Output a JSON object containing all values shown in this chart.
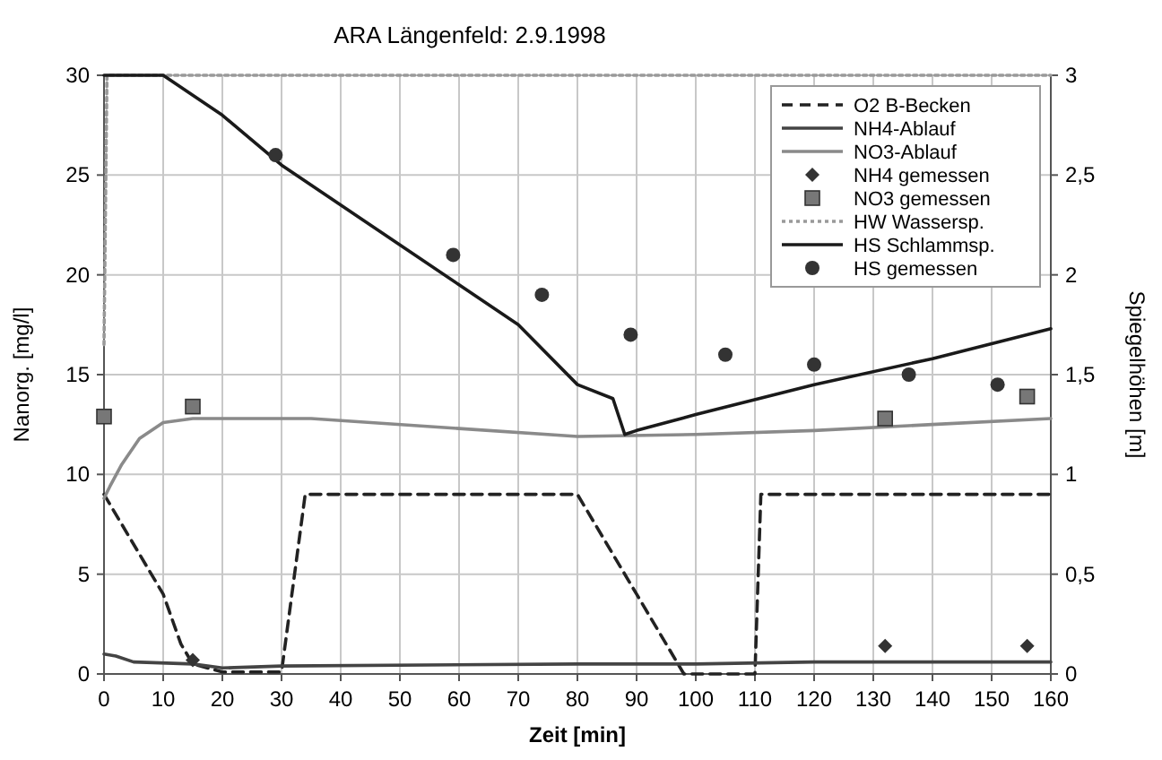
{
  "chart_data": {
    "type": "line",
    "title": "ARA Längenfeld: 2.9.1998",
    "xlabel": "Zeit [min]",
    "ylabel": "Nanorg. [mg/l]",
    "y2label": "Spiegelhöhen [m]",
    "xlim": [
      0,
      160
    ],
    "xticks": [
      0,
      10,
      20,
      30,
      40,
      50,
      60,
      70,
      80,
      90,
      100,
      110,
      120,
      130,
      140,
      150,
      160
    ],
    "ylim": [
      0,
      30
    ],
    "yticks": [
      0,
      5,
      10,
      15,
      20,
      25,
      30
    ],
    "y2lim": [
      0,
      3
    ],
    "y2ticks": [
      0,
      {
        "value": 0.5,
        "label": "0,5"
      },
      1,
      {
        "value": 1.5,
        "label": "1,5"
      },
      2,
      {
        "value": 2.5,
        "label": "2,5"
      },
      3
    ],
    "grid": true,
    "legend": "top right",
    "series": [
      {
        "name": "O2 B-Becken",
        "line_style": "dashed",
        "color": "#222222",
        "x": [
          0,
          5,
          10,
          13,
          15,
          20,
          30,
          34,
          80,
          90,
          98,
          100,
          110,
          111,
          160
        ],
        "values": [
          9,
          6.5,
          4,
          1.5,
          0.5,
          0.1,
          0.1,
          9,
          9,
          4,
          0,
          0,
          0,
          9,
          9
        ]
      },
      {
        "name": "NH4-Ablauf",
        "line_style": "solid",
        "color": "#444444",
        "x": [
          0,
          2,
          5,
          15,
          20,
          30,
          80,
          100,
          120,
          160
        ],
        "values": [
          1,
          0.9,
          0.6,
          0.5,
          0.3,
          0.4,
          0.5,
          0.5,
          0.6,
          0.6
        ]
      },
      {
        "name": "NO3-Ablauf",
        "line_style": "solid",
        "color": "#8a8a8a",
        "x": [
          0,
          1,
          3,
          6,
          10,
          15,
          35,
          60,
          80,
          100,
          120,
          140,
          160
        ],
        "values": [
          8.8,
          9.4,
          10.5,
          11.8,
          12.6,
          12.8,
          12.8,
          12.3,
          11.9,
          12,
          12.2,
          12.5,
          12.8
        ]
      },
      {
        "name": "NH4 gemessen",
        "type": "scatter",
        "marker": "diamond",
        "color": "#333333",
        "x": [
          15,
          132,
          156
        ],
        "values": [
          0.7,
          1.4,
          1.4
        ]
      },
      {
        "name": "NO3 gemessen",
        "type": "scatter",
        "marker": "square",
        "color": "#777777",
        "x": [
          0,
          15,
          132,
          156
        ],
        "values": [
          12.9,
          13.4,
          12.8,
          13.9
        ]
      },
      {
        "name": "HW Wassersp.",
        "axis": "y2",
        "line_style": "dotted",
        "color": "#999999",
        "x": [
          0,
          0.5,
          160
        ],
        "values": [
          1.65,
          3,
          3
        ]
      },
      {
        "name": "HS Schlammsp.",
        "axis": "y2",
        "line_style": "solid",
        "color": "#1a1a1a",
        "x": [
          0,
          10,
          20,
          30,
          40,
          50,
          60,
          70,
          80,
          86,
          88,
          90,
          100,
          120,
          140,
          160
        ],
        "values": [
          3,
          3,
          2.8,
          2.55,
          2.35,
          2.15,
          1.95,
          1.75,
          1.45,
          1.38,
          1.2,
          1.22,
          1.3,
          1.45,
          1.58,
          1.73
        ]
      },
      {
        "name": "HS gemessen",
        "type": "scatter",
        "axis": "y2",
        "marker": "circle",
        "color": "#333333",
        "x": [
          29,
          59,
          74,
          89,
          105,
          120,
          136,
          151
        ],
        "values": [
          2.6,
          2.1,
          1.9,
          1.7,
          1.6,
          1.55,
          1.5,
          1.45
        ]
      }
    ]
  }
}
